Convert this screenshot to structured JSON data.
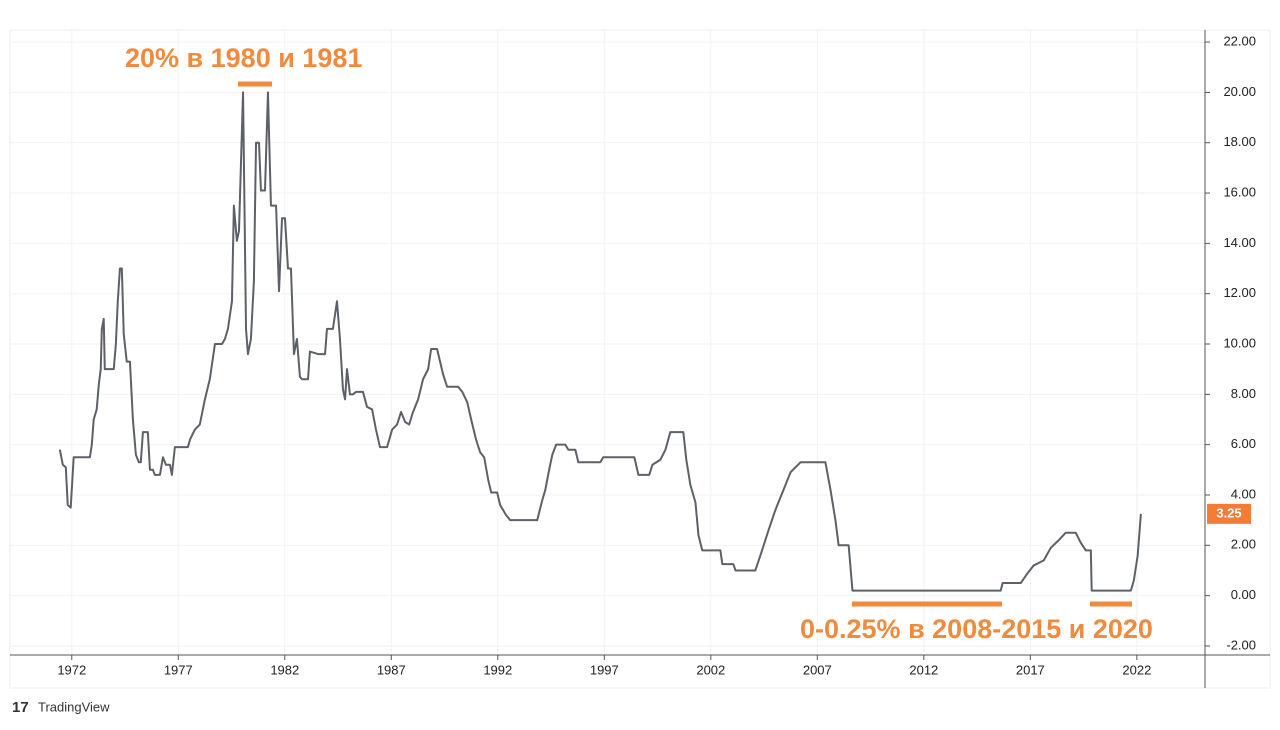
{
  "chart_data": {
    "type": "line",
    "annotations": [
      "20% в 1980 и 1981",
      "0-0.25% в 2008-2015 и 2020"
    ],
    "watermark": "TradingView",
    "color": "#5d6068",
    "last_value": 3.25,
    "last_value_color": "#f57c36",
    "grid": true,
    "xlim": [
      1969.1,
      2025.2
    ],
    "xticks": [
      1972,
      1977,
      1982,
      1987,
      1992,
      1997,
      2002,
      2007,
      2012,
      2017,
      2022
    ],
    "ylim": [
      -2.36,
      22.48
    ],
    "yticks": [
      {
        "value": -2,
        "label": "-2.00"
      },
      {
        "value": 0,
        "label": "0.00"
      },
      {
        "value": 2,
        "label": "2.00"
      },
      {
        "value": 4,
        "label": "4.00"
      },
      {
        "value": 6,
        "label": "6.00"
      },
      {
        "value": 8,
        "label": "8.00"
      },
      {
        "value": 10,
        "label": "10.00"
      },
      {
        "value": 12,
        "label": "12.00"
      },
      {
        "value": 14,
        "label": "14.00"
      },
      {
        "value": 16,
        "label": "16.00"
      },
      {
        "value": 18,
        "label": "18.00"
      },
      {
        "value": 20,
        "label": "20.00"
      },
      {
        "value": 22,
        "label": "22.00"
      }
    ],
    "x": [
      1971.44,
      1971.58,
      1971.72,
      1971.81,
      1971.95,
      1972.09,
      1972.85,
      1972.94,
      1973.03,
      1973.17,
      1973.27,
      1973.36,
      1973.41,
      1973.5,
      1973.55,
      1973.97,
      1974.07,
      1974.16,
      1974.26,
      1974.35,
      1974.44,
      1974.58,
      1974.73,
      1974.87,
      1975.01,
      1975.15,
      1975.24,
      1975.34,
      1975.57,
      1975.67,
      1975.81,
      1975.9,
      1976.14,
      1976.28,
      1976.42,
      1976.61,
      1976.7,
      1976.84,
      1977.45,
      1977.55,
      1977.78,
      1978.01,
      1978.25,
      1978.48,
      1978.72,
      1979.05,
      1979.19,
      1979.33,
      1979.52,
      1979.61,
      1979.75,
      1979.85,
      1980.04,
      1980.18,
      1980.27,
      1980.41,
      1980.55,
      1980.65,
      1980.79,
      1980.88,
      1981.07,
      1981.21,
      1981.35,
      1981.59,
      1981.73,
      1981.87,
      1982.01,
      1982.15,
      1982.29,
      1982.43,
      1982.57,
      1982.71,
      1982.81,
      1983.09,
      1983.18,
      1983.56,
      1983.89,
      1983.98,
      1984.26,
      1984.45,
      1984.59,
      1984.73,
      1984.83,
      1984.92,
      1985.06,
      1985.2,
      1985.35,
      1985.67,
      1985.86,
      1986.1,
      1986.28,
      1986.47,
      1986.8,
      1987.04,
      1987.27,
      1987.46,
      1987.65,
      1987.84,
      1988.02,
      1988.26,
      1988.49,
      1988.73,
      1988.87,
      1989.15,
      1989.29,
      1989.43,
      1989.62,
      1990.14,
      1990.33,
      1990.56,
      1990.75,
      1990.98,
      1991.17,
      1991.36,
      1991.55,
      1991.69,
      1991.97,
      1992.11,
      1992.39,
      1992.58,
      1993.85,
      1994.09,
      1994.23,
      1994.41,
      1994.56,
      1994.74,
      1995.17,
      1995.31,
      1995.64,
      1995.78,
      1996.81,
      1996.95,
      1998.41,
      1998.6,
      1999.11,
      1999.26,
      1999.63,
      1999.87,
      2000.1,
      2000.71,
      2000.85,
      2001.04,
      2001.28,
      2001.42,
      2001.6,
      2002.45,
      2002.54,
      2003.06,
      2003.16,
      2004.09,
      2004.33,
      2004.71,
      2005.03,
      2005.41,
      2005.74,
      2006.21,
      2007.38,
      2007.62,
      2007.85,
      2008.0,
      2008.47,
      2008.65,
      2015.61,
      2015.7,
      2016.55,
      2016.88,
      2017.16,
      2017.63,
      2017.96,
      2018.33,
      2018.66,
      2019.13,
      2019.37,
      2019.6,
      2019.84,
      2019.88,
      2021.72,
      2021.86,
      2022.04,
      2022.19
    ],
    "values": [
      5.8,
      5.2,
      5.1,
      3.6,
      3.5,
      5.5,
      5.5,
      6.0,
      7.0,
      7.4,
      8.4,
      9.0,
      10.6,
      11.0,
      9.0,
      9.0,
      10.0,
      11.7,
      13.0,
      13.0,
      10.4,
      9.3,
      9.3,
      7.0,
      5.6,
      5.3,
      5.3,
      6.5,
      6.5,
      5.0,
      5.0,
      4.8,
      4.8,
      5.5,
      5.2,
      5.2,
      4.8,
      5.9,
      5.9,
      6.2,
      6.6,
      6.8,
      7.8,
      8.6,
      10.0,
      10.0,
      10.2,
      10.6,
      11.7,
      15.5,
      14.1,
      14.5,
      20.0,
      10.6,
      9.6,
      10.2,
      12.5,
      18.0,
      18.0,
      16.1,
      16.1,
      20.0,
      15.5,
      15.5,
      12.1,
      15.0,
      15.0,
      13.0,
      13.0,
      9.6,
      10.2,
      8.7,
      8.6,
      8.6,
      9.7,
      9.6,
      9.6,
      10.6,
      10.6,
      11.7,
      10.2,
      8.2,
      7.8,
      9.0,
      8.0,
      8.0,
      8.1,
      8.1,
      7.5,
      7.4,
      6.6,
      5.9,
      5.9,
      6.6,
      6.8,
      7.3,
      6.9,
      6.8,
      7.3,
      7.8,
      8.6,
      9.0,
      9.8,
      9.8,
      9.3,
      8.8,
      8.3,
      8.3,
      8.1,
      7.7,
      7.0,
      6.2,
      5.7,
      5.5,
      4.6,
      4.1,
      4.1,
      3.6,
      3.2,
      3.0,
      3.0,
      3.8,
      4.2,
      5.0,
      5.6,
      6.0,
      6.0,
      5.8,
      5.8,
      5.3,
      5.3,
      5.5,
      5.5,
      4.8,
      4.8,
      5.2,
      5.4,
      5.8,
      6.5,
      6.5,
      5.4,
      4.4,
      3.7,
      2.4,
      1.8,
      1.8,
      1.25,
      1.25,
      1.0,
      1.0,
      1.6,
      2.6,
      3.4,
      4.2,
      4.9,
      5.3,
      5.3,
      4.2,
      3.0,
      2.0,
      2.0,
      0.2,
      0.2,
      0.5,
      0.5,
      0.9,
      1.2,
      1.4,
      1.9,
      2.2,
      2.5,
      2.5,
      2.1,
      1.8,
      1.8,
      0.2,
      0.2,
      0.6,
      1.6,
      3.25
    ]
  }
}
